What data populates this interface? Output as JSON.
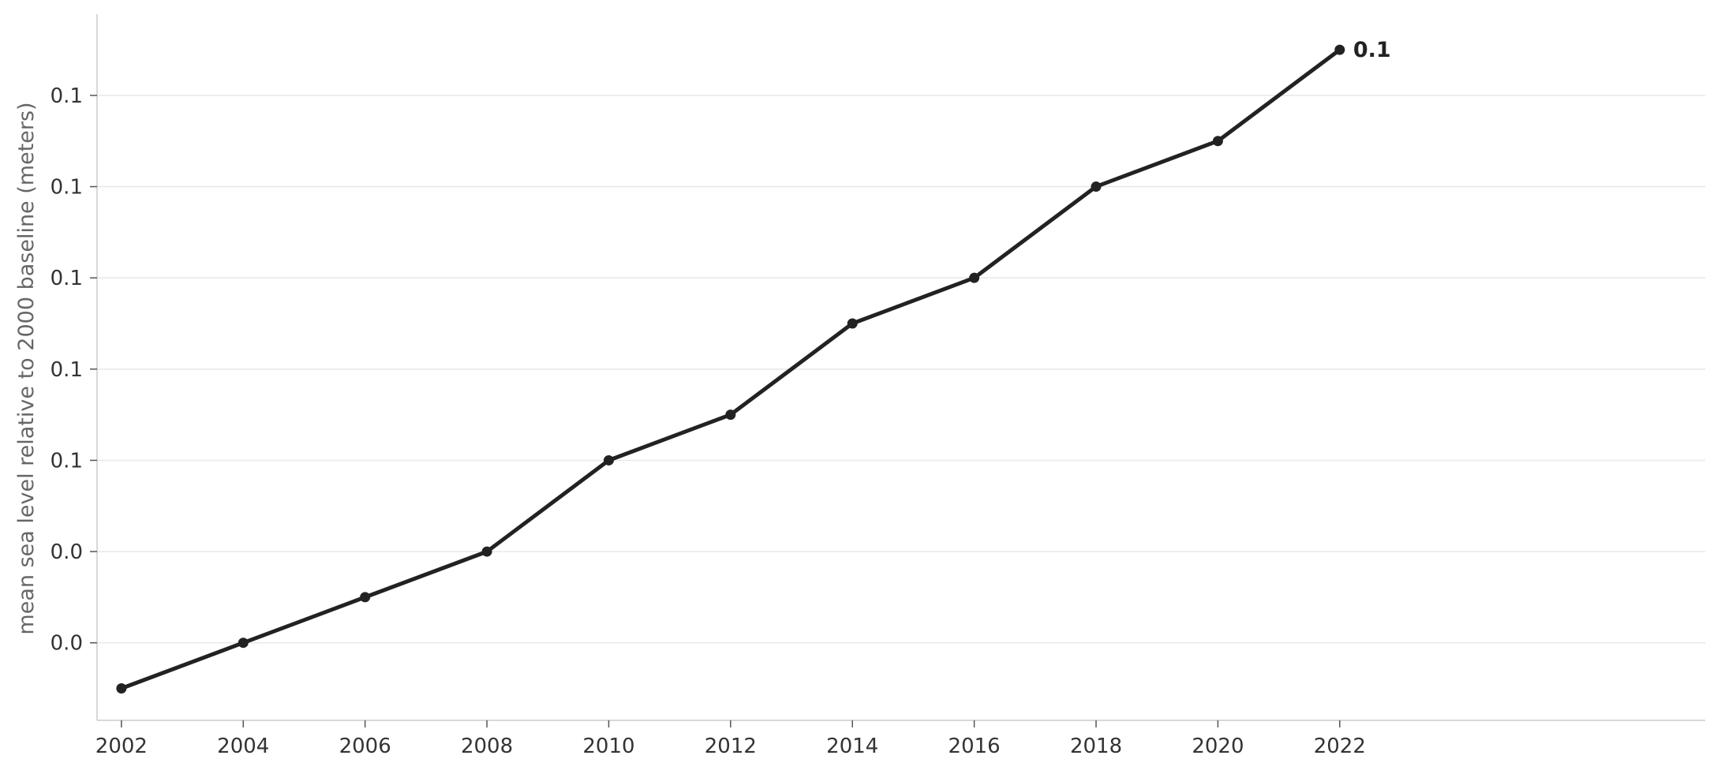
{
  "chart_data": {
    "type": "line",
    "title": "",
    "xlabel": "",
    "ylabel": "mean sea level relative to 2000 baseline (meters)",
    "x": [
      2002,
      2004,
      2006,
      2008,
      2010,
      2012,
      2014,
      2016,
      2018,
      2020,
      2022
    ],
    "series": [
      {
        "values": [
          0.035,
          0.04,
          0.045,
          0.05,
          0.06,
          0.065,
          0.075,
          0.08,
          0.09,
          0.095,
          0.105
        ]
      }
    ],
    "x_ticks": [
      "2002",
      "2004",
      "2006",
      "2008",
      "2010",
      "2012",
      "2014",
      "2016",
      "2018",
      "2020",
      "2022"
    ],
    "y_ticks": [
      {
        "value": 0.04,
        "label": "0.0"
      },
      {
        "value": 0.05,
        "label": "0.0"
      },
      {
        "value": 0.06,
        "label": "0.1"
      },
      {
        "value": 0.07,
        "label": "0.1"
      },
      {
        "value": 0.08,
        "label": "0.1"
      },
      {
        "value": 0.09,
        "label": "0.1"
      },
      {
        "value": 0.1,
        "label": "0.1"
      }
    ],
    "xlim": [
      2001.6,
      2028
    ],
    "ylim": [
      0.0315,
      0.1089
    ],
    "grid": "horizontal",
    "end_label": "0.1",
    "colors": {
      "line": "#222222",
      "grid": "#e8e8e8",
      "axis": "#cccccc"
    }
  }
}
